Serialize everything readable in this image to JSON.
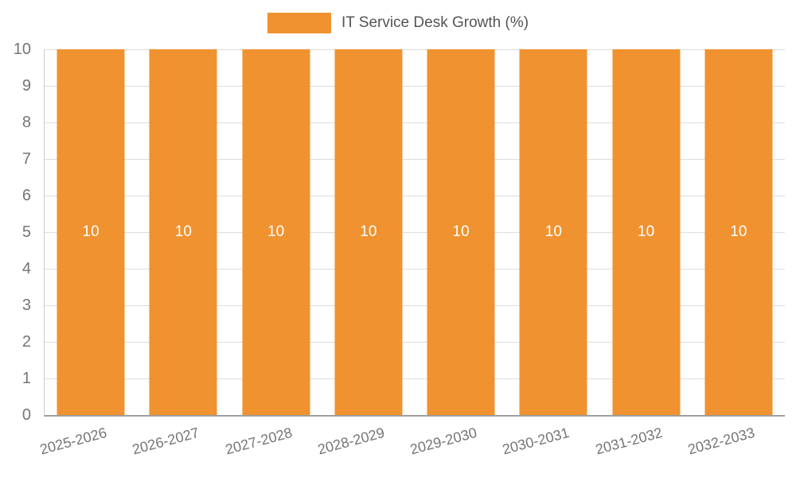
{
  "chart_data": {
    "type": "bar",
    "title": "IT Service Desk Growth (%)",
    "categories": [
      "2025-2026",
      "2026-2027",
      "2027-2028",
      "2028-2029",
      "2029-2030",
      "2030-2031",
      "2031-2032",
      "2032-2033"
    ],
    "values": [
      10,
      10,
      10,
      10,
      10,
      10,
      10,
      10
    ],
    "bar_labels": [
      "10",
      "10",
      "10",
      "10",
      "10",
      "10",
      "10",
      "10"
    ],
    "ylabel": "",
    "xlabel": "",
    "ylim": [
      0,
      10
    ],
    "ytick_step": 1,
    "grid": true,
    "legend_position": "top-center",
    "colors": {
      "bar": "#f0922f",
      "bar_label": "#ffffff",
      "axis_text": "#757575",
      "title_text": "#545454",
      "gridline": "#dddddd",
      "axis_line": "#9e9e9e"
    }
  }
}
